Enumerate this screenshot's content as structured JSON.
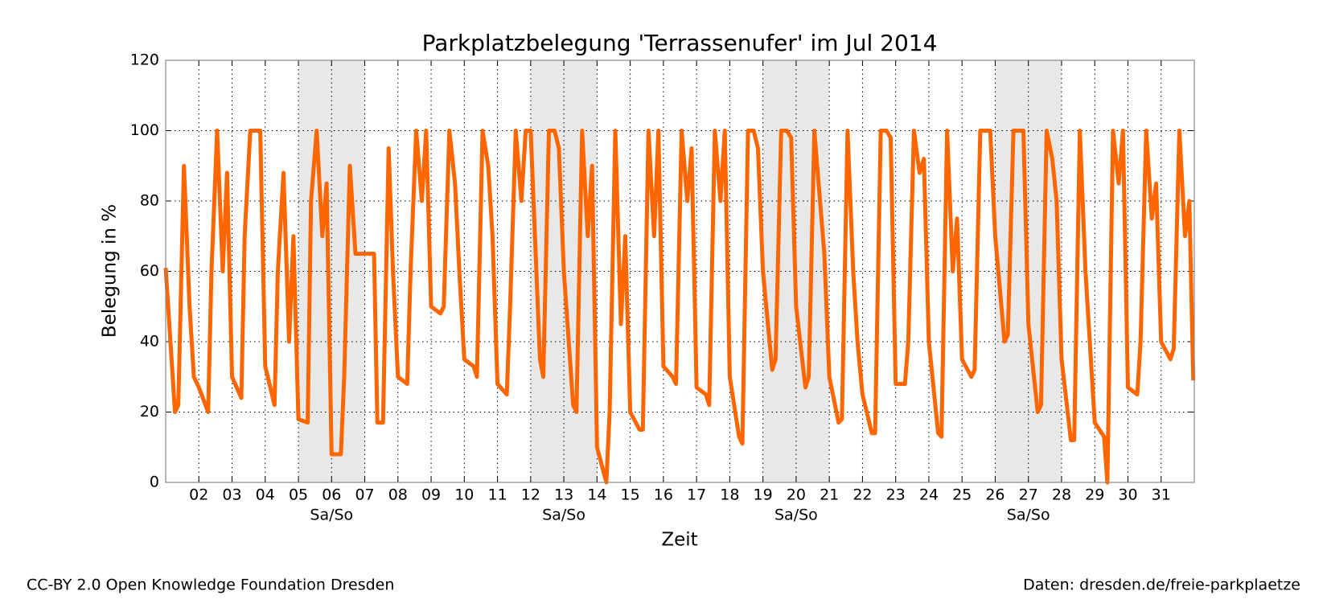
{
  "chart_data": {
    "type": "line",
    "title": "Parkplatzbelegung 'Terrassenufer' im Jul 2014",
    "x_label": "Zeit",
    "y_label": "Belegung in %",
    "footer_left": "CC-BY 2.0 Open Knowledge Foundation Dresden",
    "footer_right": "Daten: dresden.de/freie-parkplaetze",
    "xlim": [
      1,
      32
    ],
    "ylim": [
      0,
      120
    ],
    "xticks": [
      {
        "value": 2,
        "label": "02"
      },
      {
        "value": 3,
        "label": "03"
      },
      {
        "value": 4,
        "label": "04"
      },
      {
        "value": 5,
        "label": "05"
      },
      {
        "value": 6,
        "label": "06"
      },
      {
        "value": 7,
        "label": "07"
      },
      {
        "value": 8,
        "label": "08"
      },
      {
        "value": 9,
        "label": "09"
      },
      10,
      11,
      12,
      13,
      14,
      15,
      16,
      17,
      18,
      19,
      20,
      21,
      22,
      23,
      24,
      25,
      26,
      27,
      28,
      29,
      30,
      31
    ],
    "yticks": [
      0,
      20,
      40,
      60,
      80,
      100,
      120
    ],
    "grid": true,
    "spans": [
      {
        "start": 5,
        "end": 7,
        "label": "Sa/So"
      },
      {
        "start": 12,
        "end": 14,
        "label": "Sa/So"
      },
      {
        "start": 19,
        "end": 21,
        "label": "Sa/So"
      },
      {
        "start": 26,
        "end": 28,
        "label": "Sa/So"
      }
    ],
    "series": [
      {
        "color": "#ff6600",
        "x": [
          1,
          1.28,
          1.38,
          1.55,
          1.72,
          1.85,
          2,
          2.28,
          2.38,
          2.55,
          2.72,
          2.85,
          3,
          3.28,
          3.38,
          3.55,
          3.72,
          3.85,
          4,
          4.28,
          4.38,
          4.55,
          4.72,
          4.85,
          5,
          5.28,
          5.38,
          5.55,
          5.72,
          5.85,
          6,
          6.28,
          6.38,
          6.55,
          6.72,
          6.85,
          7,
          7.28,
          7.38,
          7.55,
          7.72,
          7.85,
          8,
          8.28,
          8.38,
          8.55,
          8.72,
          8.85,
          9,
          9.28,
          9.38,
          9.55,
          9.72,
          9.85,
          10,
          10.28,
          10.38,
          10.55,
          10.72,
          10.85,
          11,
          11.28,
          11.38,
          11.55,
          11.72,
          11.85,
          12,
          12.28,
          12.38,
          12.55,
          12.72,
          12.85,
          13,
          13.28,
          13.38,
          13.55,
          13.72,
          13.85,
          14,
          14.28,
          14.38,
          14.55,
          14.72,
          14.85,
          15,
          15.28,
          15.38,
          15.55,
          15.72,
          15.85,
          16,
          16.28,
          16.38,
          16.55,
          16.72,
          16.85,
          17,
          17.28,
          17.38,
          17.55,
          17.72,
          17.85,
          18,
          18.28,
          18.38,
          18.55,
          18.72,
          18.85,
          19,
          19.28,
          19.38,
          19.55,
          19.72,
          19.85,
          20,
          20.28,
          20.38,
          20.55,
          20.72,
          20.85,
          21,
          21.28,
          21.38,
          21.55,
          21.72,
          21.85,
          22,
          22.28,
          22.38,
          22.55,
          22.72,
          22.85,
          23,
          23.28,
          23.38,
          23.55,
          23.72,
          23.85,
          24,
          24.28,
          24.38,
          24.55,
          24.72,
          24.85,
          25,
          25.28,
          25.38,
          25.55,
          25.72,
          25.85,
          26,
          26.28,
          26.38,
          26.55,
          26.72,
          26.85,
          27,
          27.28,
          27.38,
          27.55,
          27.72,
          27.85,
          28,
          28.28,
          28.38,
          28.55,
          28.72,
          28.85,
          29,
          29.28,
          29.38,
          29.55,
          29.72,
          29.85,
          30,
          30.28,
          30.38,
          30.55,
          30.72,
          30.85,
          31,
          31.28,
          31.38,
          31.55,
          31.72,
          31.85,
          31.97
        ],
        "values": [
          61,
          20,
          22,
          90,
          50,
          30,
          27,
          20,
          60,
          100,
          60,
          88,
          30,
          24,
          70,
          100,
          100,
          100,
          33,
          22,
          60,
          88,
          40,
          70,
          18,
          17,
          80,
          100,
          70,
          85,
          8,
          8,
          30,
          90,
          65,
          65,
          65,
          65,
          17,
          17,
          95,
          60,
          30,
          28,
          60,
          100,
          80,
          100,
          50,
          48,
          50,
          100,
          85,
          60,
          35,
          33,
          30,
          100,
          90,
          70,
          28,
          25,
          50,
          100,
          80,
          100,
          100,
          35,
          30,
          100,
          100,
          95,
          60,
          22,
          20,
          100,
          70,
          90,
          10,
          0,
          20,
          100,
          45,
          70,
          20,
          15,
          15,
          100,
          70,
          100,
          33,
          30,
          28,
          100,
          80,
          95,
          27,
          25,
          22,
          100,
          80,
          100,
          30,
          13,
          11,
          100,
          100,
          95,
          60,
          32,
          35,
          100,
          100,
          98,
          50,
          27,
          30,
          100,
          80,
          65,
          30,
          17,
          18,
          100,
          60,
          40,
          25,
          14,
          14,
          100,
          100,
          98,
          28,
          28,
          40,
          100,
          88,
          92,
          40,
          14,
          13,
          100,
          60,
          75,
          35,
          30,
          32,
          100,
          100,
          100,
          70,
          40,
          42,
          100,
          100,
          100,
          45,
          20,
          22,
          100,
          92,
          80,
          35,
          12,
          12,
          100,
          60,
          40,
          17,
          13,
          0,
          100,
          85,
          100,
          27,
          25,
          40,
          100,
          75,
          85,
          40,
          35,
          38,
          100,
          70,
          80,
          29
        ]
      }
    ]
  }
}
